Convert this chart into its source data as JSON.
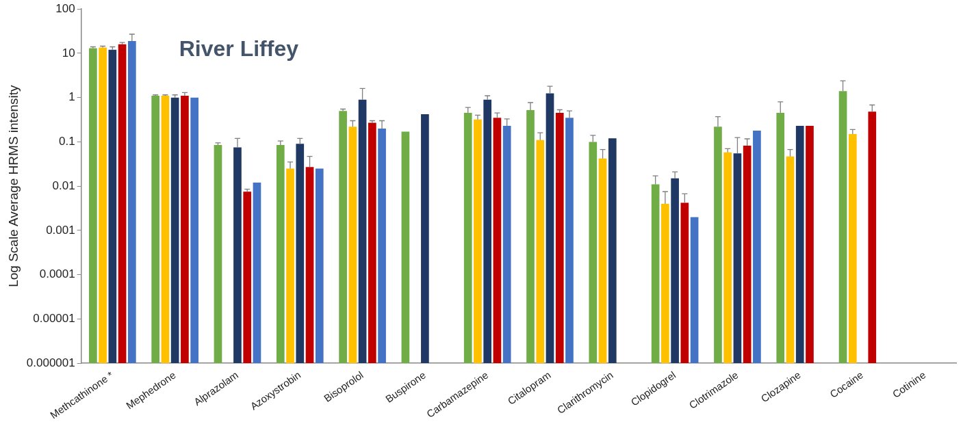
{
  "chart_data": {
    "type": "bar",
    "title": "River Liffey",
    "ylabel": "Log Scale Average HRMS intensity",
    "categories": [
      "Methcathinone *",
      "Mephedrone",
      "Alprazolam",
      "Azoxystrobin",
      "Bisoprolol",
      "Buspirone",
      "Carbamazepine",
      "Citalopram",
      "Clarithromycin",
      "Clopidogrel",
      "Clotrimazole",
      "Clozapine",
      "Cocaine",
      "Cotinine"
    ],
    "series": [
      {
        "color": "#70ad47",
        "values": [
          13,
          1.1,
          0.085,
          0.085,
          0.5,
          0.17,
          0.45,
          0.52,
          0.1,
          0.011,
          0.22,
          0.45,
          1.4,
          null
        ],
        "errors": [
          [
            13,
            14
          ],
          [
            1.1,
            1.15
          ],
          [
            0.085,
            0.095
          ],
          [
            0.085,
            0.105
          ],
          [
            0.5,
            0.55
          ],
          null,
          [
            0.45,
            0.6
          ],
          [
            0.52,
            0.77
          ],
          [
            0.1,
            0.14
          ],
          [
            0.011,
            0.017
          ],
          [
            0.22,
            0.37
          ],
          [
            0.45,
            0.8
          ],
          [
            1.4,
            2.4
          ],
          null
        ]
      },
      {
        "color": "#ffc000",
        "values": [
          13.5,
          1.1,
          null,
          0.025,
          0.22,
          null,
          0.32,
          0.11,
          0.042,
          0.004,
          0.058,
          0.047,
          0.15,
          null
        ],
        "errors": [
          [
            13.5,
            14.5
          ],
          [
            1.1,
            1.15
          ],
          null,
          [
            0.025,
            0.035
          ],
          [
            0.22,
            0.3
          ],
          null,
          [
            0.32,
            0.4
          ],
          [
            0.11,
            0.16
          ],
          [
            0.042,
            0.067
          ],
          [
            0.004,
            0.0075
          ],
          [
            0.058,
            0.07
          ],
          [
            0.047,
            0.067
          ],
          [
            0.15,
            0.19
          ],
          null
        ]
      },
      {
        "color": "#203864",
        "values": [
          12,
          1.0,
          0.075,
          0.09,
          0.9,
          0.42,
          0.9,
          1.25,
          0.12,
          0.015,
          0.055,
          0.23,
          null,
          null
        ],
        "errors": [
          [
            12,
            14
          ],
          [
            1.0,
            1.15
          ],
          [
            0.075,
            0.12
          ],
          [
            0.09,
            0.12
          ],
          [
            0.9,
            1.6
          ],
          null,
          [
            0.9,
            1.1
          ],
          [
            1.25,
            1.8
          ],
          null,
          [
            0.015,
            0.021
          ],
          [
            0.055,
            0.125
          ],
          null,
          null,
          null
        ]
      },
      {
        "color": "#c00000",
        "values": [
          16,
          1.1,
          0.0075,
          0.027,
          0.27,
          null,
          0.35,
          0.45,
          null,
          0.0042,
          0.082,
          0.23,
          0.48,
          null
        ],
        "errors": [
          [
            16,
            17.5
          ],
          [
            1.1,
            1.3
          ],
          [
            0.0075,
            0.0085
          ],
          [
            0.027,
            0.047
          ],
          [
            0.27,
            0.3
          ],
          null,
          [
            0.35,
            0.45
          ],
          [
            0.45,
            0.53
          ],
          null,
          [
            0.0042,
            0.0067
          ],
          [
            0.082,
            0.117
          ],
          null,
          [
            0.48,
            0.68
          ],
          null
        ]
      },
      {
        "color": "#4472c4",
        "values": [
          19,
          1.0,
          0.012,
          0.025,
          0.2,
          null,
          0.23,
          0.35,
          null,
          0.002,
          0.18,
          null,
          null,
          null
        ],
        "errors": [
          [
            19,
            27
          ],
          null,
          null,
          null,
          [
            0.2,
            0.3
          ],
          null,
          [
            0.23,
            0.33
          ],
          [
            0.35,
            0.5
          ],
          null,
          null,
          null,
          null,
          null,
          null
        ]
      }
    ],
    "log": "y",
    "ylim": [
      1e-06,
      100
    ],
    "yticks": [
      {
        "value": 1e-06,
        "label": "0.000001"
      },
      {
        "value": 1e-05,
        "label": "0.00001"
      },
      0.0001,
      0.001,
      0.01,
      0.1,
      1,
      10,
      100
    ],
    "grid": false,
    "legend": false
  }
}
